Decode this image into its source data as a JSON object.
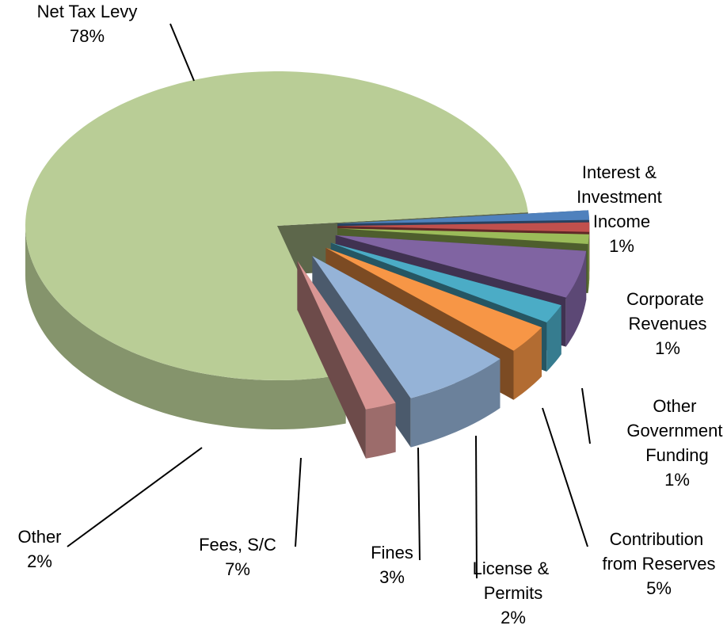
{
  "chart_data": {
    "type": "pie",
    "categories": [
      "Interest & Investment Income",
      "Corporate Revenues",
      "Other Government Funding",
      "Contribution from Reserves",
      "License & Permits",
      "Fines",
      "Fees, S/C",
      "Other",
      "Net Tax Levy"
    ],
    "values": [
      1,
      1,
      1,
      5,
      2,
      3,
      7,
      2,
      78
    ],
    "value_labels": [
      "1%",
      "1%",
      "1%",
      "5%",
      "2%",
      "3%",
      "7%",
      "2%",
      "78%"
    ],
    "colors": [
      "#4f81bd",
      "#c0504d",
      "#9bbb59",
      "#8064a2",
      "#4bacc6",
      "#f79646",
      "#95b3d7",
      "#d99694",
      "#b9cd96"
    ]
  }
}
